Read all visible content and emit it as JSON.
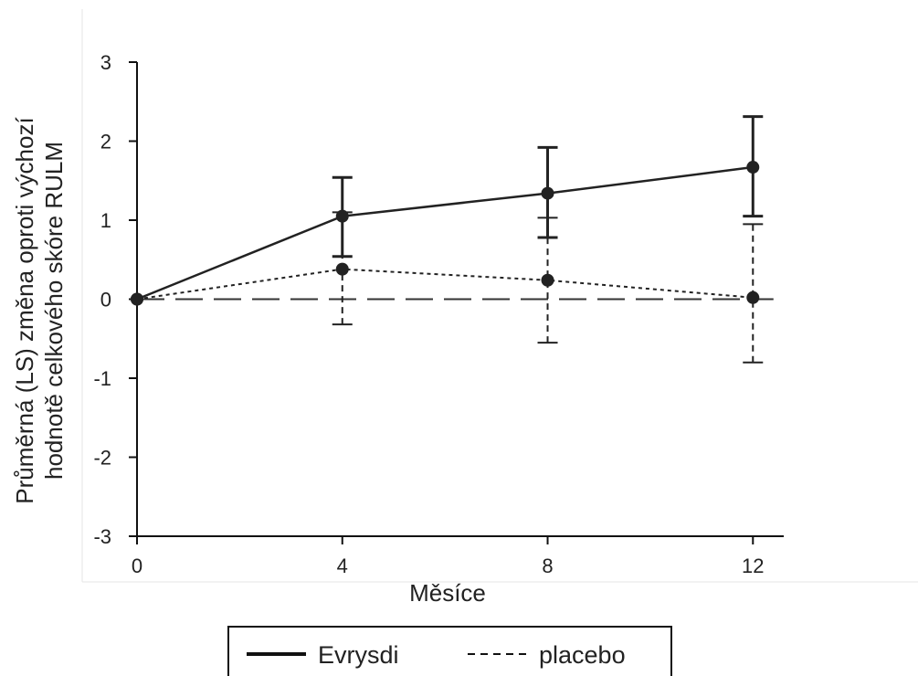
{
  "chart_data": {
    "type": "line",
    "xlabel": "Měsíce",
    "ylabel_lines": [
      "Průměrná (LS) změna oproti výchozí",
      "hodnotě celkového skóre RULM"
    ],
    "x_ticks": [
      0,
      4,
      8,
      12
    ],
    "y_ticks": [
      -3,
      -2,
      -1,
      0,
      1,
      2,
      3
    ],
    "xlim": [
      0,
      12.6
    ],
    "ylim": [
      -3,
      3
    ],
    "reference_line_y": 0,
    "grid": false,
    "legend_position": "bottom-center",
    "series": [
      {
        "name": "Evrysdi",
        "style": "solid",
        "color": "#222222",
        "x": [
          0,
          4,
          8,
          12
        ],
        "y": [
          0,
          1.05,
          1.34,
          1.67
        ],
        "error_low": [
          0,
          0.54,
          0.78,
          1.05
        ],
        "error_high": [
          0,
          1.54,
          1.92,
          2.31
        ]
      },
      {
        "name": "placebo",
        "style": "dashed",
        "color": "#222222",
        "x": [
          0,
          4,
          8,
          12
        ],
        "y": [
          0,
          0.38,
          0.24,
          0.02
        ],
        "error_low": [
          0,
          -0.32,
          -0.55,
          -0.8
        ],
        "error_high": [
          0,
          1.1,
          1.03,
          0.95
        ]
      }
    ]
  }
}
